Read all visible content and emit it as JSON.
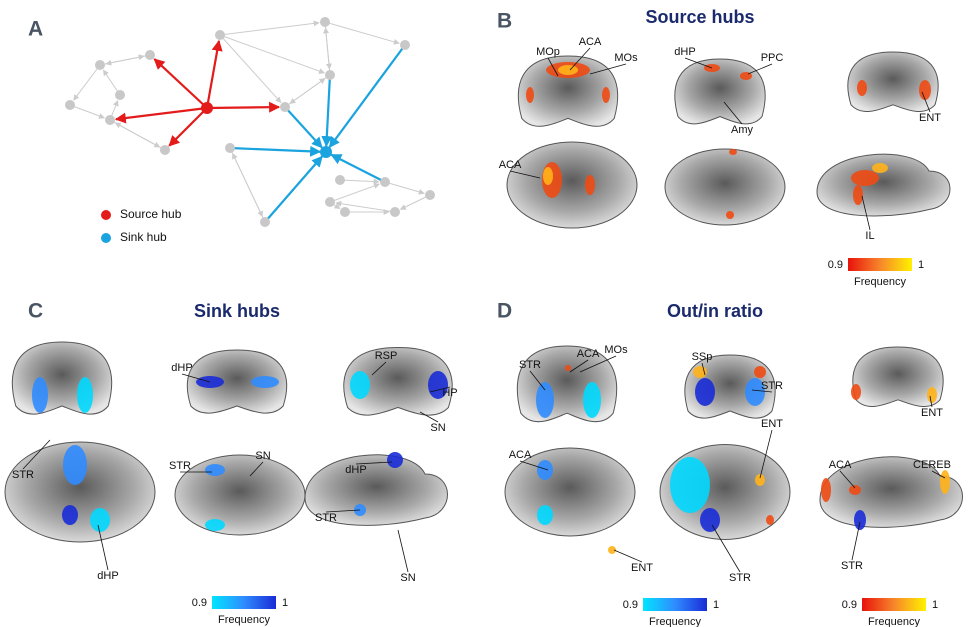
{
  "panels": [
    {
      "letter": "A",
      "legend": [
        "Source hub",
        "Sink hub"
      ]
    },
    {
      "letter": "B",
      "title": "Source hubs",
      "labels": [
        "MOp",
        "ACA",
        "MOs",
        "dHP",
        "PPC",
        "ENT",
        "Amy",
        "ACA",
        "IL"
      ],
      "colorbars": [
        {
          "min": 0.9,
          "max": 1,
          "label": "Frequency"
        }
      ]
    },
    {
      "letter": "C",
      "title": "Sink hubs",
      "labels": [
        "dHP",
        "RSP",
        "HP",
        "SN",
        "STR",
        "STR",
        "SN",
        "dHP",
        "STR",
        "dHP",
        "SN"
      ],
      "colorbars": [
        {
          "min": 0.9,
          "max": 1,
          "label": "Frequency"
        }
      ]
    },
    {
      "letter": "D",
      "title": "Out/in ratio",
      "labels": [
        "STR",
        "ACA",
        "MOs",
        "SSp",
        "STR",
        "ENT",
        "ACA",
        "ENT",
        "ENT",
        "ACA",
        "CEREB",
        "STR",
        "STR"
      ],
      "colorbars": [
        {
          "min": 0.9,
          "max": 1,
          "label": "Frequency"
        },
        {
          "min": 0.9,
          "max": 1,
          "label": "Frequency"
        }
      ]
    }
  ]
}
